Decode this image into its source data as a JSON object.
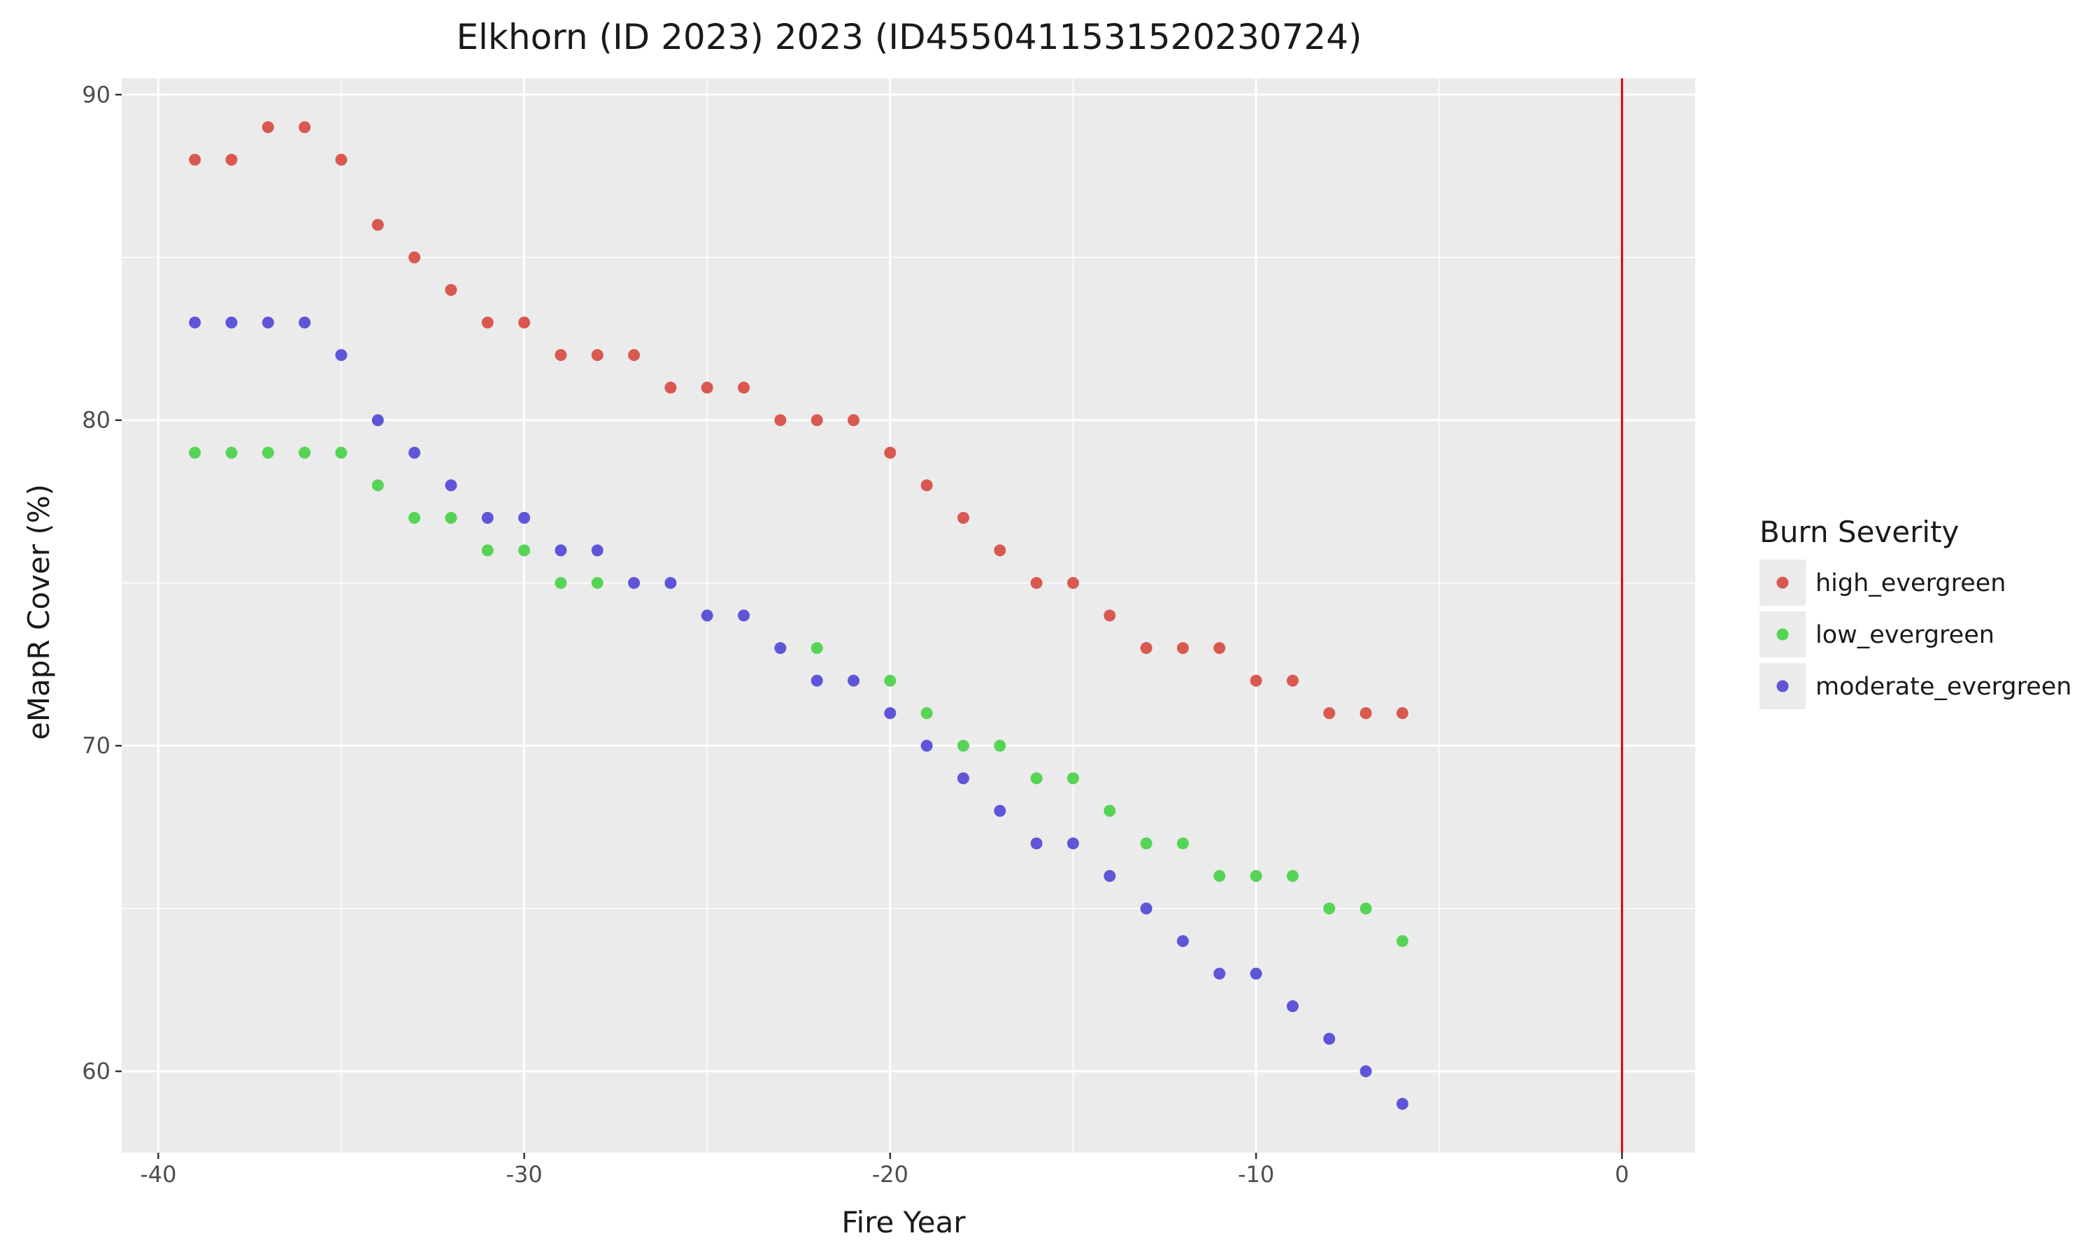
{
  "chart_data": {
    "type": "scatter",
    "title": "Elkhorn (ID 2023) 2023 (ID45504115315202307​24)",
    "xlabel": "Fire Year",
    "ylabel": "eMapR Cover (%)",
    "xlim": [
      -41,
      2
    ],
    "ylim": [
      57.5,
      90.5
    ],
    "x_ticks": [
      -40,
      -30,
      -20,
      -10,
      0
    ],
    "x_tick_labels": [
      "-40",
      "-30",
      "-20",
      "-10",
      "0"
    ],
    "y_ticks": [
      60,
      70,
      80,
      90
    ],
    "y_tick_labels": [
      "60",
      "70",
      "80",
      "90"
    ],
    "grid": true,
    "legend_title": "Burn Severity",
    "legend_position": "right",
    "vline": {
      "x": 0,
      "color": "#e00000"
    },
    "x": [
      -39,
      -38,
      -37,
      -36,
      -35,
      -34,
      -33,
      -32,
      -31,
      -30,
      -29,
      -28,
      -27,
      -26,
      -25,
      -24,
      -23,
      -22,
      -21,
      -20,
      -19,
      -18,
      -17,
      -16,
      -15,
      -14,
      -13,
      -12,
      -11,
      -10,
      -9,
      -8,
      -7,
      -6
    ],
    "series": [
      {
        "name": "high_evergreen",
        "color": "#d9584f",
        "values": [
          88,
          88,
          89,
          89,
          88,
          86,
          85,
          84,
          83,
          83,
          82,
          82,
          82,
          81,
          81,
          81,
          80,
          80,
          80,
          79,
          78,
          77,
          76,
          75,
          75,
          74,
          73,
          73,
          73,
          72,
          72,
          71,
          71,
          71
        ]
      },
      {
        "name": "low_evergreen",
        "color": "#56d455",
        "values": [
          79,
          79,
          79,
          79,
          79,
          78,
          77,
          77,
          76,
          76,
          75,
          75,
          null,
          null,
          null,
          null,
          null,
          73,
          null,
          72,
          71,
          70,
          70,
          69,
          69,
          68,
          67,
          67,
          66,
          66,
          66,
          65,
          65,
          64
        ]
      },
      {
        "name": "moderate_evergreen",
        "color": "#5f55d8",
        "values": [
          83,
          83,
          83,
          83,
          82,
          80,
          79,
          78,
          77,
          77,
          76,
          76,
          75,
          75,
          74,
          74,
          73,
          72,
          72,
          71,
          70,
          69,
          68,
          67,
          67,
          66,
          65,
          64,
          63,
          63,
          62,
          61,
          60,
          59
        ]
      }
    ]
  }
}
